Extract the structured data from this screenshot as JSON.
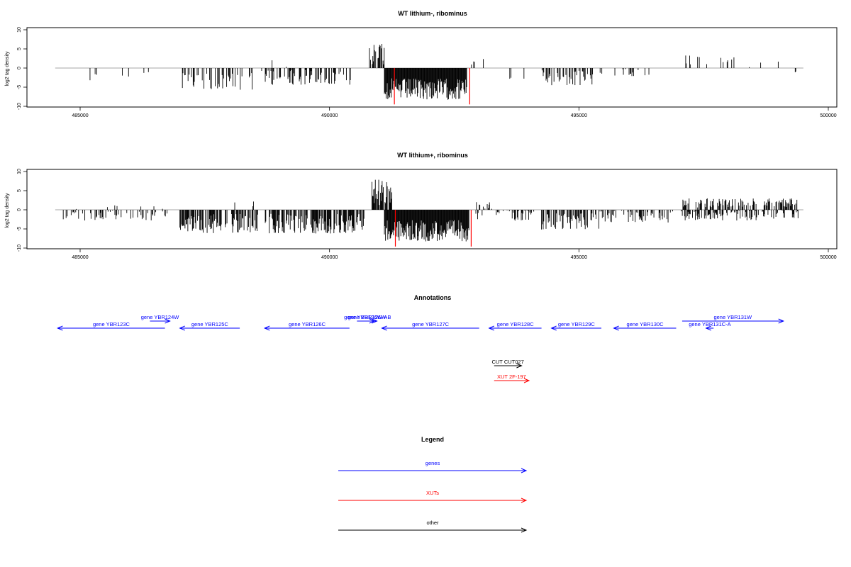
{
  "chart_data": [
    {
      "type": "bar",
      "title": "WT lithium-, ribominus",
      "ylabel": "log2 tag density",
      "xlabel": "",
      "xlim": [
        484000,
        500000
      ],
      "ylim": [
        -10,
        10
      ],
      "x_ticks": [
        485000,
        490000,
        495000,
        500000
      ],
      "y_ticks": [
        -10,
        -5,
        0,
        5,
        10
      ],
      "baseline": [
        484500,
        499500
      ],
      "grid": false,
      "bar_color": "#000000",
      "highlight_color": "#ff0000",
      "segments": [
        {
          "start": 484650,
          "end": 484800,
          "sign": -1,
          "mean": 1.2,
          "spread": 1.0,
          "density": 0.04
        },
        {
          "start": 484800,
          "end": 485400,
          "sign": -1,
          "mean": 2.5,
          "spread": 1.8,
          "density": 0.1
        },
        {
          "start": 485800,
          "end": 486700,
          "sign": -1,
          "mean": 1.8,
          "spread": 1.5,
          "density": 0.04
        },
        {
          "start": 487050,
          "end": 488480,
          "sign": -1,
          "mean": 3.5,
          "spread": 2.2,
          "density": 0.35
        },
        {
          "start": 488480,
          "end": 488680,
          "sign": -1,
          "mean": 0.6,
          "spread": 0.4,
          "density": 0.1
        },
        {
          "start": 488700,
          "end": 489200,
          "sign": 1,
          "mean": 1.2,
          "spread": 1.2,
          "density": 0.04
        },
        {
          "start": 488700,
          "end": 490450,
          "sign": -1,
          "mean": 2.5,
          "spread": 2.0,
          "density": 0.4
        },
        {
          "start": 490500,
          "end": 490800,
          "sign": -1,
          "mean": 1.2,
          "spread": 0.8,
          "density": 0.1
        },
        {
          "start": 490800,
          "end": 491100,
          "sign": 1,
          "mean": 3.5,
          "spread": 3.0,
          "density": 0.55
        },
        {
          "start": 491100,
          "end": 492750,
          "sign": -1,
          "mean": 5.5,
          "spread": 2.8,
          "density": 1.0
        },
        {
          "start": 492800,
          "end": 493250,
          "sign": 1,
          "mean": 1.5,
          "spread": 1.0,
          "density": 0.08
        },
        {
          "start": 493500,
          "end": 493900,
          "sign": -1,
          "mean": 1.5,
          "spread": 1.5,
          "density": 0.05
        },
        {
          "start": 494250,
          "end": 495300,
          "sign": -1,
          "mean": 2.6,
          "spread": 2.0,
          "density": 0.4
        },
        {
          "start": 495300,
          "end": 496900,
          "sign": -1,
          "mean": 1.2,
          "spread": 1.0,
          "density": 0.06
        },
        {
          "start": 497050,
          "end": 498200,
          "sign": 1,
          "mean": 2.2,
          "spread": 1.6,
          "density": 0.14
        },
        {
          "start": 498200,
          "end": 499000,
          "sign": 1,
          "mean": 1.0,
          "spread": 0.8,
          "density": 0.05
        },
        {
          "start": 499200,
          "end": 499450,
          "sign": -1,
          "mean": 1.5,
          "spread": 0.8,
          "density": 0.12
        }
      ],
      "red_markers": [
        {
          "x": 491300,
          "value": -9.5
        },
        {
          "x": 492810,
          "value": -9.5
        }
      ]
    },
    {
      "type": "bar",
      "title": "WT lithium+, ribominus",
      "ylabel": "log2 tag density",
      "xlabel": "",
      "xlim": [
        484000,
        500000
      ],
      "ylim": [
        -10,
        10
      ],
      "x_ticks": [
        485000,
        490000,
        495000,
        500000
      ],
      "y_ticks": [
        -10,
        -5,
        0,
        5,
        10
      ],
      "baseline": [
        484500,
        499500
      ],
      "grid": false,
      "bar_color": "#000000",
      "highlight_color": "#ff0000",
      "segments": [
        {
          "start": 484650,
          "end": 486800,
          "sign": -1,
          "mean": 1.5,
          "spread": 1.3,
          "density": 0.22
        },
        {
          "start": 484750,
          "end": 486800,
          "sign": 1,
          "mean": 0.7,
          "spread": 0.6,
          "density": 0.04
        },
        {
          "start": 487000,
          "end": 488600,
          "sign": -1,
          "mean": 3.6,
          "spread": 2.5,
          "density": 0.6
        },
        {
          "start": 488100,
          "end": 488500,
          "sign": 1,
          "mean": 1.2,
          "spread": 1.2,
          "density": 0.05
        },
        {
          "start": 488700,
          "end": 490700,
          "sign": -1,
          "mean": 3.6,
          "spread": 2.6,
          "density": 0.7
        },
        {
          "start": 490850,
          "end": 491250,
          "sign": 1,
          "mean": 4.5,
          "spread": 3.5,
          "density": 0.9
        },
        {
          "start": 491100,
          "end": 492800,
          "sign": -1,
          "mean": 5.5,
          "spread": 2.8,
          "density": 1.0
        },
        {
          "start": 492900,
          "end": 493300,
          "sign": 1,
          "mean": 1.0,
          "spread": 1.0,
          "density": 0.25
        },
        {
          "start": 492900,
          "end": 494100,
          "sign": -1,
          "mean": 1.5,
          "spread": 1.5,
          "density": 0.3
        },
        {
          "start": 494250,
          "end": 495400,
          "sign": -1,
          "mean": 3.0,
          "spread": 2.2,
          "density": 0.55
        },
        {
          "start": 495400,
          "end": 496900,
          "sign": -1,
          "mean": 1.8,
          "spread": 1.6,
          "density": 0.35
        },
        {
          "start": 497050,
          "end": 499400,
          "sign": 1,
          "mean": 1.8,
          "spread": 1.2,
          "density": 0.45
        },
        {
          "start": 497050,
          "end": 499400,
          "sign": -1,
          "mean": 1.5,
          "spread": 1.3,
          "density": 0.4
        }
      ],
      "red_markers": [
        {
          "x": 491320,
          "value": -9.6
        },
        {
          "x": 492840,
          "value": -9.6
        }
      ]
    }
  ],
  "annotations": {
    "title": "Annotations",
    "xlim": [
      484000,
      500000
    ],
    "features": [
      {
        "label": "gene YBR123C",
        "start": 484550,
        "end": 486700,
        "strand": "-",
        "row": 2,
        "color": "#0000ff"
      },
      {
        "label": "gene YBR124W",
        "start": 486400,
        "end": 486800,
        "strand": "+",
        "row": 1,
        "color": "#0000ff"
      },
      {
        "label": "gene YBR125C",
        "start": 487000,
        "end": 488200,
        "strand": "-",
        "row": 2,
        "color": "#0000ff"
      },
      {
        "label": "gene YBR126C",
        "start": 488700,
        "end": 490400,
        "strand": "-",
        "row": 2,
        "color": "#0000ff"
      },
      {
        "label": "gene YBR126W-A",
        "start": 490550,
        "end": 490900,
        "strand": "+",
        "row": 1,
        "color": "#0000ff"
      },
      {
        "label": "gene YBR126W-B",
        "start": 490650,
        "end": 490950,
        "strand": "+",
        "row": 1,
        "color": "#0000ff"
      },
      {
        "label": "gene YBR127C",
        "start": 491050,
        "end": 493000,
        "strand": "-",
        "row": 2,
        "color": "#0000ff"
      },
      {
        "label": "gene YBR128C",
        "start": 493200,
        "end": 494250,
        "strand": "-",
        "row": 2,
        "color": "#0000ff"
      },
      {
        "label": "gene YBR129C",
        "start": 494450,
        "end": 495450,
        "strand": "-",
        "row": 2,
        "color": "#0000ff"
      },
      {
        "label": "gene YBR130C",
        "start": 495700,
        "end": 496950,
        "strand": "-",
        "row": 2,
        "color": "#0000ff"
      },
      {
        "label": "gene YBR131W",
        "start": 497070,
        "end": 499100,
        "strand": "+",
        "row": 1,
        "color": "#0000ff"
      },
      {
        "label": "gene YBR131C-A",
        "start": 497550,
        "end": 497700,
        "strand": "-",
        "row": 2,
        "color": "#0000ff"
      },
      {
        "label": "CUT CUT027",
        "start": 493300,
        "end": 493850,
        "strand": "+",
        "row": 4,
        "color": "#000000"
      },
      {
        "label": "XUT 2F-197",
        "start": 493300,
        "end": 494000,
        "strand": "+",
        "row": 5,
        "color": "#ff0000"
      }
    ]
  },
  "legend": {
    "title": "Legend",
    "items": [
      {
        "label": "genes",
        "color": "#0000ff"
      },
      {
        "label": "XUTs",
        "color": "#ff0000"
      },
      {
        "label": "other",
        "color": "#000000"
      }
    ]
  }
}
